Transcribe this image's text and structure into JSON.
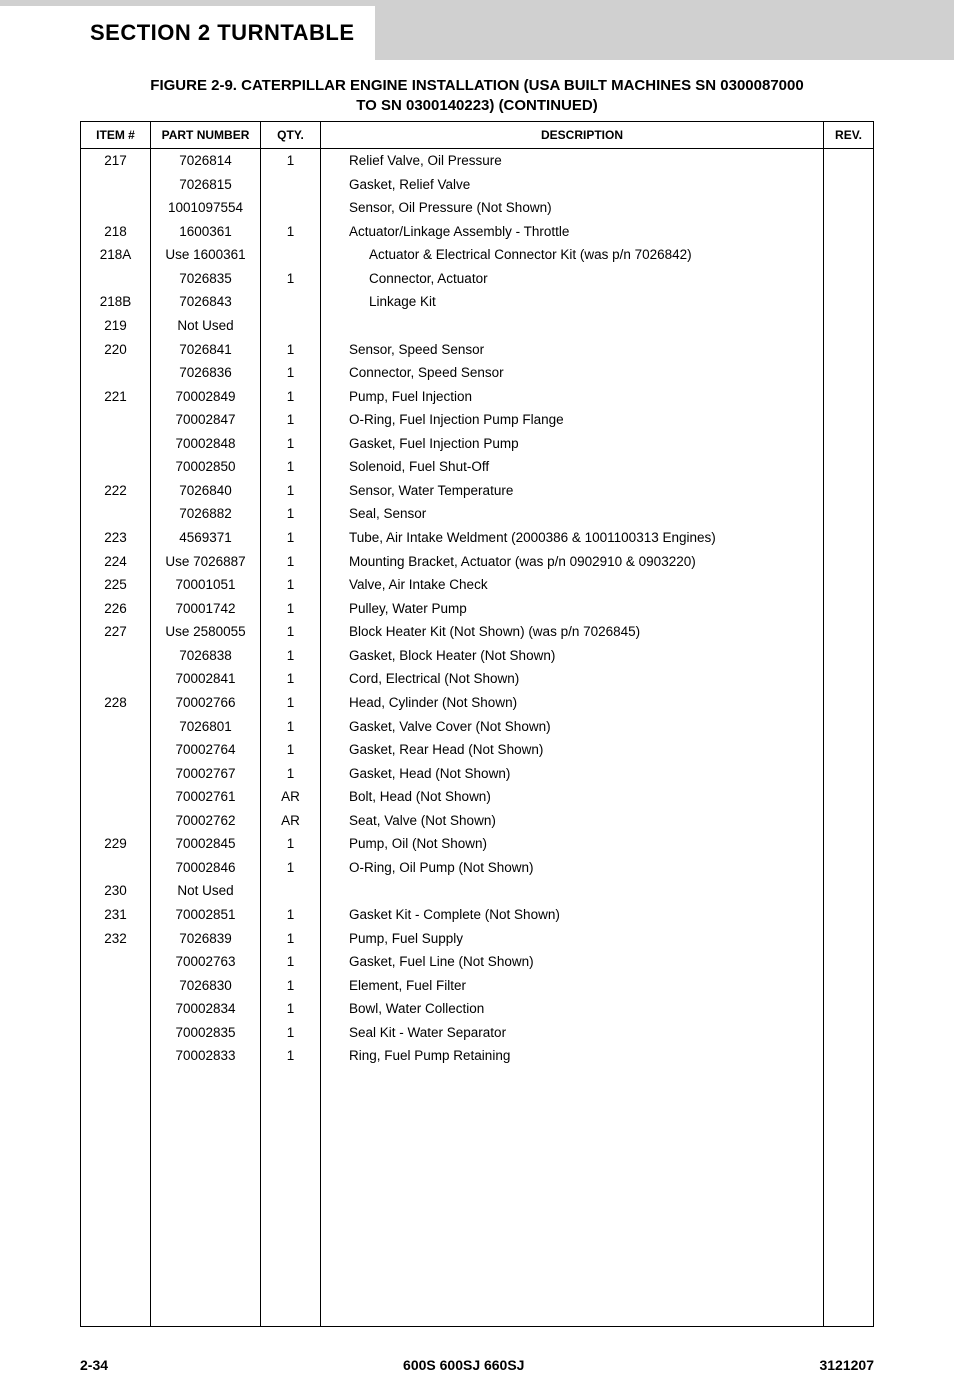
{
  "header": {
    "section_title": "SECTION 2   TURNTABLE",
    "figure_title_line1": "FIGURE 2-9.  CATERPILLAR ENGINE INSTALLATION (USA BUILT MACHINES SN 0300087000",
    "figure_title_line2": "TO SN 0300140223) (CONTINUED)"
  },
  "columns": {
    "item": "ITEM #",
    "part": "PART NUMBER",
    "qty": "QTY.",
    "desc": "DESCRIPTION",
    "rev": "REV."
  },
  "rows": [
    {
      "item": "217",
      "part": "7026814",
      "qty": "1",
      "desc": "Relief Valve, Oil Pressure",
      "indent": 0
    },
    {
      "item": "",
      "part": "7026815",
      "qty": "",
      "desc": "Gasket, Relief Valve",
      "indent": 0
    },
    {
      "item": "",
      "part": "1001097554",
      "qty": "",
      "desc": "Sensor, Oil Pressure (Not Shown)",
      "indent": 0
    },
    {
      "item": "218",
      "part": "1600361",
      "qty": "1",
      "desc": "Actuator/Linkage Assembly - Throttle",
      "indent": 0
    },
    {
      "item": "218A",
      "part": "Use 1600361",
      "qty": "",
      "desc": "Actuator & Electrical Connector Kit (was p/n 7026842)",
      "indent": 1
    },
    {
      "item": "",
      "part": "7026835",
      "qty": "1",
      "desc": "Connector, Actuator",
      "indent": 1
    },
    {
      "item": "218B",
      "part": "7026843",
      "qty": "",
      "desc": "Linkage Kit",
      "indent": 1
    },
    {
      "item": "219",
      "part": "Not Used",
      "qty": "",
      "desc": "",
      "indent": 0
    },
    {
      "item": "220",
      "part": "7026841",
      "qty": "1",
      "desc": "Sensor, Speed Sensor",
      "indent": 0
    },
    {
      "item": "",
      "part": "7026836",
      "qty": "1",
      "desc": "Connector, Speed Sensor",
      "indent": 0
    },
    {
      "item": "221",
      "part": "70002849",
      "qty": "1",
      "desc": "Pump, Fuel Injection",
      "indent": 0
    },
    {
      "item": "",
      "part": "70002847",
      "qty": "1",
      "desc": "O-Ring, Fuel Injection Pump Flange",
      "indent": 0
    },
    {
      "item": "",
      "part": "70002848",
      "qty": "1",
      "desc": "Gasket, Fuel Injection Pump",
      "indent": 0
    },
    {
      "item": "",
      "part": "70002850",
      "qty": "1",
      "desc": "Solenoid, Fuel Shut-Off",
      "indent": 0
    },
    {
      "item": "222",
      "part": "7026840",
      "qty": "1",
      "desc": "Sensor, Water Temperature",
      "indent": 0
    },
    {
      "item": "",
      "part": "7026882",
      "qty": "1",
      "desc": "Seal, Sensor",
      "indent": 0
    },
    {
      "item": "223",
      "part": "4569371",
      "qty": "1",
      "desc": "Tube, Air Intake Weldment (2000386 & 1001100313 Engines)",
      "indent": 0
    },
    {
      "item": "224",
      "part": "Use 7026887",
      "qty": "1",
      "desc": "Mounting Bracket, Actuator (was p/n 0902910 & 0903220)",
      "indent": 0
    },
    {
      "item": "225",
      "part": "70001051",
      "qty": "1",
      "desc": "Valve, Air Intake Check",
      "indent": 0
    },
    {
      "item": "226",
      "part": "70001742",
      "qty": "1",
      "desc": "Pulley, Water Pump",
      "indent": 0
    },
    {
      "item": "227",
      "part": "Use 2580055",
      "qty": "1",
      "desc": "Block Heater Kit (Not Shown) (was p/n 7026845)",
      "indent": 0
    },
    {
      "item": "",
      "part": "7026838",
      "qty": "1",
      "desc": "Gasket, Block Heater (Not Shown)",
      "indent": 0
    },
    {
      "item": "",
      "part": "70002841",
      "qty": "1",
      "desc": "Cord, Electrical (Not Shown)",
      "indent": 0
    },
    {
      "item": "228",
      "part": "70002766",
      "qty": "1",
      "desc": "Head, Cylinder (Not Shown)",
      "indent": 0
    },
    {
      "item": "",
      "part": "7026801",
      "qty": "1",
      "desc": "Gasket, Valve Cover (Not Shown)",
      "indent": 0
    },
    {
      "item": "",
      "part": "70002764",
      "qty": "1",
      "desc": "Gasket, Rear Head (Not Shown)",
      "indent": 0
    },
    {
      "item": "",
      "part": "70002767",
      "qty": "1",
      "desc": "Gasket, Head (Not Shown)",
      "indent": 0
    },
    {
      "item": "",
      "part": "70002761",
      "qty": "AR",
      "desc": "Bolt, Head (Not Shown)",
      "indent": 0
    },
    {
      "item": "",
      "part": "70002762",
      "qty": "AR",
      "desc": "Seat, Valve (Not Shown)",
      "indent": 0
    },
    {
      "item": "229",
      "part": "70002845",
      "qty": "1",
      "desc": "Pump, Oil (Not Shown)",
      "indent": 0
    },
    {
      "item": "",
      "part": "70002846",
      "qty": "1",
      "desc": "O-Ring, Oil Pump (Not Shown)",
      "indent": 0
    },
    {
      "item": "230",
      "part": "Not Used",
      "qty": "",
      "desc": "",
      "indent": 0
    },
    {
      "item": "231",
      "part": "70002851",
      "qty": "1",
      "desc": "Gasket Kit - Complete (Not Shown)",
      "indent": 0
    },
    {
      "item": "232",
      "part": "7026839",
      "qty": "1",
      "desc": "Pump, Fuel Supply",
      "indent": 0
    },
    {
      "item": "",
      "part": "70002763",
      "qty": "1",
      "desc": "Gasket, Fuel Line (Not Shown)",
      "indent": 0
    },
    {
      "item": "",
      "part": "7026830",
      "qty": "1",
      "desc": "Element, Fuel Filter",
      "indent": 0
    },
    {
      "item": "",
      "part": "70002834",
      "qty": "1",
      "desc": "Bowl, Water Collection",
      "indent": 0
    },
    {
      "item": "",
      "part": "70002835",
      "qty": "1",
      "desc": "Seal Kit - Water Separator",
      "indent": 0
    },
    {
      "item": "",
      "part": "70002833",
      "qty": "1",
      "desc": "Ring, Fuel Pump Retaining",
      "indent": 0
    }
  ],
  "footer": {
    "page": "2-34",
    "model": "600S 600SJ 660SJ",
    "doc": "3121207"
  }
}
